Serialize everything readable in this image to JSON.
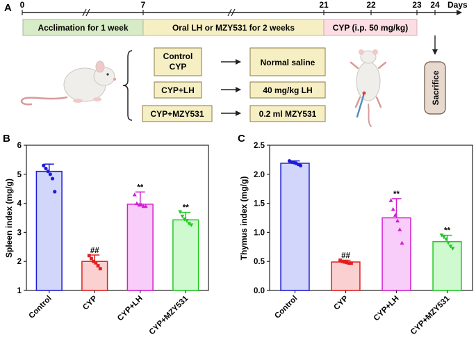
{
  "panel_a": {
    "label": "A",
    "timeline_ticks": [
      "0",
      "7",
      "21",
      "22",
      "23",
      "24"
    ],
    "days_label": "Days",
    "phases": [
      {
        "label": "Acclimation for 1 week",
        "color": "#d7ecc6"
      },
      {
        "label": "Oral LH or MZY531 for 2 weeks",
        "color": "#f6efc4"
      },
      {
        "label": "CYP (i.p. 50 mg/kg)",
        "color": "#fbdde3"
      }
    ],
    "groups": [
      {
        "name": "Control\nCYP",
        "treatment": "Normal saline"
      },
      {
        "name": "CYP+LH",
        "treatment": "40 mg/kg LH"
      },
      {
        "name": "CYP+MZY531",
        "treatment": "0.2 ml MZY531"
      }
    ],
    "endpoint": "Sacrifice",
    "colors": {
      "box_fill": "#f6efc4",
      "box_stroke": "#8a7a4a",
      "sacrifice_fill": "#e8d9cf"
    }
  },
  "chart_data": [
    {
      "panel": "B",
      "type": "bar",
      "ylabel": "Spleen index (mg/g)",
      "categories": [
        "Control",
        "CYP",
        "CYP+LH",
        "CYP+MZY531"
      ],
      "values": [
        5.1,
        2.0,
        3.97,
        3.43
      ],
      "errors": [
        0.25,
        0.22,
        0.42,
        0.26
      ],
      "ylim": [
        1,
        6
      ],
      "yticks": [
        "1",
        "2",
        "3",
        "4",
        "5",
        "6"
      ],
      "ytick_values": [
        1,
        2,
        3,
        4,
        5,
        6
      ],
      "annotations": [
        "",
        "##",
        "**",
        "**"
      ],
      "points": [
        [
          5.3,
          5.2,
          5.1,
          5.0,
          4.85,
          4.4
        ],
        [
          2.2,
          2.1,
          2.0,
          1.95,
          1.85,
          1.75
        ],
        [
          4.3,
          4.0,
          3.95,
          3.95,
          3.9,
          3.9
        ],
        [
          3.7,
          3.55,
          3.45,
          3.4,
          3.3,
          3.25
        ]
      ],
      "colors": {
        "fills": [
          "#d2d6fb",
          "#fbd0d0",
          "#f9cdf9",
          "#cff9cf"
        ],
        "strokes": [
          "#1c1cd6",
          "#e21f1f",
          "#d21ed2",
          "#22c922"
        ]
      }
    },
    {
      "panel": "C",
      "type": "bar",
      "ylabel": "Thymus index (mg/g)",
      "categories": [
        "Control",
        "CYP",
        "CYP+LH",
        "CYP+MZY531"
      ],
      "values": [
        2.19,
        0.49,
        1.25,
        0.84
      ],
      "errors": [
        0.04,
        0.03,
        0.33,
        0.11
      ],
      "ylim": [
        0,
        2.5
      ],
      "yticks": [
        "0.0",
        "0.5",
        "1.0",
        "1.5",
        "2.0",
        "2.5"
      ],
      "ytick_values": [
        0,
        0.5,
        1.0,
        1.5,
        2.0,
        2.5
      ],
      "annotations": [
        "",
        "##",
        "**",
        "**"
      ],
      "points": [
        [
          2.23,
          2.21,
          2.2,
          2.19,
          2.17,
          2.15
        ],
        [
          0.52,
          0.5,
          0.49,
          0.48,
          0.47,
          0.47
        ],
        [
          1.55,
          1.4,
          1.3,
          1.2,
          1.05,
          0.82
        ],
        [
          0.95,
          0.92,
          0.88,
          0.82,
          0.76,
          0.72
        ]
      ],
      "colors": {
        "fills": [
          "#d2d6fb",
          "#fbd0d0",
          "#f9cdf9",
          "#cff9cf"
        ],
        "strokes": [
          "#1c1cd6",
          "#e21f1f",
          "#d21ed2",
          "#22c922"
        ]
      }
    }
  ]
}
